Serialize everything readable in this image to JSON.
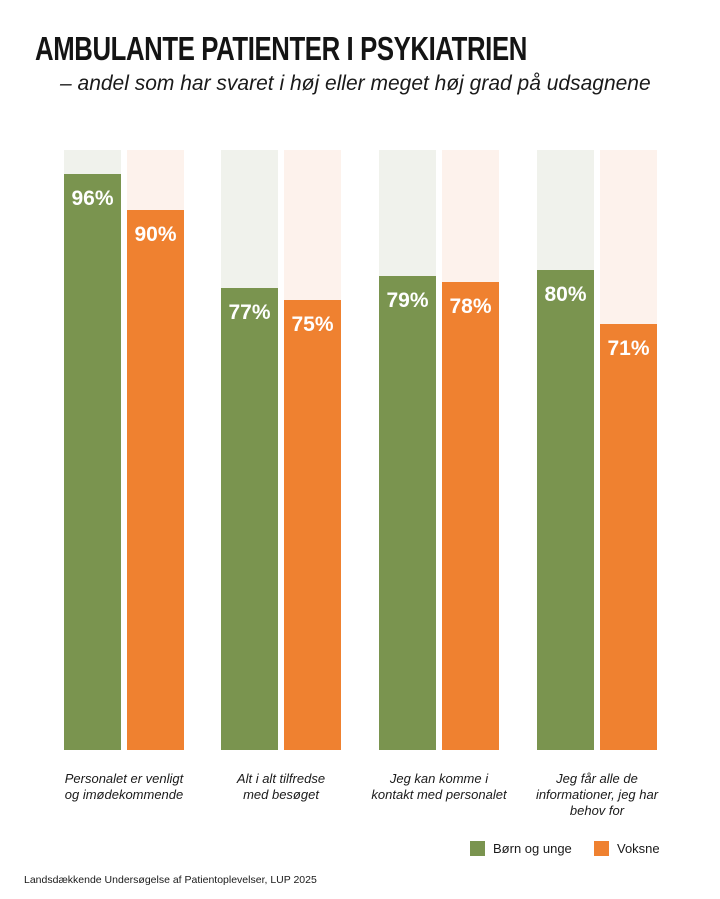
{
  "chart_data": {
    "type": "bar",
    "title": "AMBULANTE PATIENTER I PSYKIATRIEN",
    "subtitle": "– andel som har svaret i høj eller meget høj grad på udsagnene",
    "categories": [
      [
        "Personalet er venligt",
        "og imødekommende"
      ],
      [
        "Alt i alt tilfredse",
        "med besøget"
      ],
      [
        "Jeg kan komme i",
        "kontakt med personalet"
      ],
      [
        "Jeg får alle de",
        "informationer, jeg har",
        "behov for"
      ]
    ],
    "series": [
      {
        "name": "Børn og unge",
        "values": [
          96,
          77,
          79,
          80
        ],
        "labels": [
          "96%",
          "77%",
          "79%",
          "80%"
        ],
        "color": "#7a944f",
        "track_color": "#f0f2ec"
      },
      {
        "name": "Voksne",
        "values": [
          90,
          75,
          78,
          71
        ],
        "labels": [
          "90%",
          "75%",
          "78%",
          "71%"
        ],
        "color": "#ef8130",
        "track_color": "#fdf2ec"
      }
    ],
    "ylim": [
      0,
      100
    ],
    "grid": false,
    "legend": "bottom-right",
    "source": "Landsdækkende Undersøgelse af Patientoplevelser, LUP 2025"
  }
}
